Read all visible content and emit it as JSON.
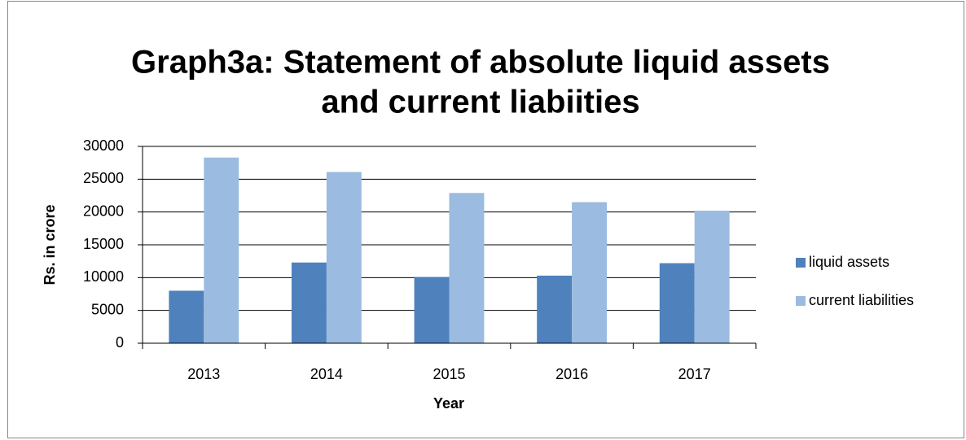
{
  "chart_data": {
    "type": "bar",
    "title": [
      "Graph3a: Statement of absolute liquid assets",
      "and  current liabiities"
    ],
    "x_label": "Year",
    "y_label": "Rs. in crore",
    "categories": [
      "2013",
      "2014",
      "2015",
      "2016",
      "2017"
    ],
    "series": [
      {
        "name": "liquid assets",
        "color": "#4f81bd",
        "values": [
          8000,
          12300,
          10100,
          10300,
          12200
        ]
      },
      {
        "name": "current liabilities",
        "color": "#9bbbe0",
        "values": [
          28300,
          26100,
          22900,
          21500,
          20200
        ]
      }
    ],
    "ylim": [
      0,
      30000
    ],
    "yticks": [
      0,
      5000,
      10000,
      15000,
      20000,
      25000,
      30000
    ],
    "grid": true,
    "legend": "right"
  }
}
